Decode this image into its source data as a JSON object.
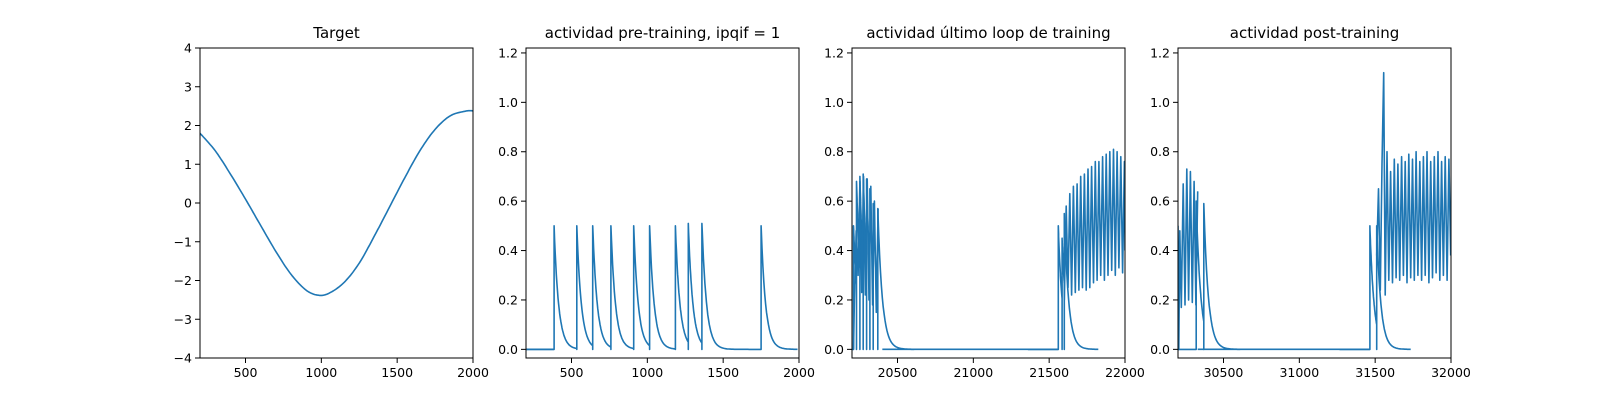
{
  "chart_data": [
    {
      "type": "line",
      "title": "Target",
      "xlim": [
        200,
        2000
      ],
      "ylim": [
        -4,
        4
      ],
      "xticks": [
        500,
        1000,
        1500,
        2000
      ],
      "yticks": [
        -4,
        -3,
        -2,
        -1,
        0,
        1,
        2,
        3,
        4
      ],
      "xticklabels": [
        "500",
        "1000",
        "1500",
        "2000"
      ],
      "yticklabels": [
        "−4",
        "−3",
        "−2",
        "−1",
        "0",
        "1",
        "2",
        "3",
        "4"
      ],
      "color": "#1f77b4",
      "series": [
        {
          "kind": "curve",
          "points": [
            [
              200,
              1.8
            ],
            [
              300,
              1.35
            ],
            [
              400,
              0.75
            ],
            [
              500,
              0.1
            ],
            [
              600,
              -0.58
            ],
            [
              700,
              -1.25
            ],
            [
              800,
              -1.84
            ],
            [
              900,
              -2.25
            ],
            [
              980,
              -2.38
            ],
            [
              1050,
              -2.33
            ],
            [
              1150,
              -2.05
            ],
            [
              1250,
              -1.55
            ],
            [
              1350,
              -0.85
            ],
            [
              1450,
              -0.1
            ],
            [
              1550,
              0.65
            ],
            [
              1650,
              1.35
            ],
            [
              1750,
              1.9
            ],
            [
              1850,
              2.25
            ],
            [
              1950,
              2.37
            ],
            [
              2000,
              2.38
            ]
          ]
        }
      ]
    },
    {
      "type": "line",
      "title": "actividad pre-training, ipqif = 1",
      "xlim": [
        200,
        2000
      ],
      "ylim": [
        -0.035,
        1.22
      ],
      "xticks": [
        500,
        1000,
        1500,
        2000
      ],
      "yticks": [
        0.0,
        0.2,
        0.4,
        0.6,
        0.8,
        1.0,
        1.2
      ],
      "xticklabels": [
        "500",
        "1000",
        "1500",
        "2000"
      ],
      "yticklabels": [
        "0.0",
        "0.2",
        "0.4",
        "0.6",
        "0.8",
        "1.0",
        "1.2"
      ],
      "color": "#1f77b4",
      "series": [
        {
          "kind": "spikes",
          "tau": 30,
          "baseline": 0.0,
          "spikes": [
            [
              385,
              0.5
            ],
            [
              535,
              0.5
            ],
            [
              640,
              0.5
            ],
            [
              760,
              0.5
            ],
            [
              910,
              0.5
            ],
            [
              1015,
              0.5
            ],
            [
              1185,
              0.5
            ],
            [
              1270,
              0.51
            ],
            [
              1360,
              0.51
            ],
            [
              1750,
              0.5
            ]
          ]
        }
      ]
    },
    {
      "type": "line",
      "title": "actividad último loop de training",
      "xlim": [
        20200,
        22000
      ],
      "ylim": [
        -0.035,
        1.22
      ],
      "xticks": [
        20500,
        21000,
        21500,
        22000
      ],
      "yticks": [
        0.0,
        0.2,
        0.4,
        0.6,
        0.8,
        1.0,
        1.2
      ],
      "xticklabels": [
        "20500",
        "21000",
        "21500",
        "22000"
      ],
      "yticklabels": [
        "0.0",
        "0.2",
        "0.4",
        "0.6",
        "0.8",
        "1.0",
        "1.2"
      ],
      "color": "#1f77b4",
      "series": [
        {
          "kind": "spikes",
          "tau": 30,
          "baseline": 0.0,
          "spikes": [
            [
              20210,
              0.5
            ],
            [
              20230,
              0.68
            ],
            [
              20252,
              0.7
            ],
            [
              20274,
              0.71
            ],
            [
              20296,
              0.69
            ],
            [
              20318,
              0.65
            ],
            [
              20340,
              0.59
            ],
            [
              20370,
              0.57
            ]
          ]
        },
        {
          "kind": "oscillation",
          "points": [
            [
              20210,
              0.0
            ],
            [
              20216,
              0.2
            ],
            [
              20228,
              0.48
            ],
            [
              20240,
              0.3
            ],
            [
              20252,
              0.68
            ],
            [
              20264,
              0.23
            ],
            [
              20276,
              0.7
            ],
            [
              20288,
              0.22
            ],
            [
              20300,
              0.69
            ],
            [
              20312,
              0.2
            ],
            [
              20324,
              0.66
            ],
            [
              20336,
              0.18
            ],
            [
              20348,
              0.6
            ],
            [
              20360,
              0.15
            ],
            [
              20372,
              0.57
            ]
          ]
        },
        {
          "kind": "spikes",
          "tau": 28,
          "baseline": 0.0,
          "spikes": [
            [
              21560,
              0.5
            ],
            [
              21585,
              0.45
            ],
            [
              21600,
              0.55
            ]
          ]
        },
        {
          "kind": "oscillation",
          "points": [
            [
              21600,
              0.2
            ],
            [
              21612,
              0.58
            ],
            [
              21624,
              0.25
            ],
            [
              21636,
              0.63
            ],
            [
              21648,
              0.22
            ],
            [
              21660,
              0.66
            ],
            [
              21672,
              0.23
            ],
            [
              21684,
              0.67
            ],
            [
              21696,
              0.24
            ],
            [
              21708,
              0.7
            ],
            [
              21720,
              0.25
            ],
            [
              21732,
              0.71
            ],
            [
              21744,
              0.24
            ],
            [
              21756,
              0.73
            ],
            [
              21768,
              0.25
            ],
            [
              21780,
              0.74
            ],
            [
              21792,
              0.27
            ],
            [
              21804,
              0.76
            ],
            [
              21816,
              0.28
            ],
            [
              21828,
              0.76
            ],
            [
              21840,
              0.3
            ],
            [
              21852,
              0.78
            ],
            [
              21864,
              0.28
            ],
            [
              21876,
              0.79
            ],
            [
              21888,
              0.3
            ],
            [
              21900,
              0.8
            ],
            [
              21912,
              0.32
            ],
            [
              21924,
              0.81
            ],
            [
              21936,
              0.3
            ],
            [
              21948,
              0.8
            ],
            [
              21960,
              0.33
            ],
            [
              21972,
              0.78
            ],
            [
              21984,
              0.31
            ],
            [
              21996,
              0.76
            ],
            [
              22000,
              0.4
            ]
          ]
        }
      ]
    },
    {
      "type": "line",
      "title": "actividad post-training",
      "xlim": [
        30200,
        32000
      ],
      "ylim": [
        -0.035,
        1.22
      ],
      "xticks": [
        30500,
        31000,
        31500,
        32000
      ],
      "yticks": [
        0.0,
        0.2,
        0.4,
        0.6,
        0.8,
        1.0,
        1.2
      ],
      "xticklabels": [
        "30500",
        "31000",
        "31500",
        "32000"
      ],
      "yticklabels": [
        "0.0",
        "0.2",
        "0.4",
        "0.6",
        "0.8",
        "1.0",
        "1.2"
      ],
      "color": "#1f77b4",
      "series": [
        {
          "kind": "spikes",
          "tau": 30,
          "baseline": 0.0,
          "spikes": [
            [
              30320,
              0.6
            ],
            [
              30370,
              0.59
            ]
          ]
        },
        {
          "kind": "oscillation",
          "points": [
            [
              30200,
              0.5
            ],
            [
              30205,
              0.0
            ],
            [
              30212,
              0.48
            ],
            [
              30222,
              0.17
            ],
            [
              30234,
              0.67
            ],
            [
              30246,
              0.18
            ],
            [
              30258,
              0.73
            ],
            [
              30270,
              0.2
            ],
            [
              30282,
              0.72
            ],
            [
              30294,
              0.19
            ],
            [
              30306,
              0.68
            ],
            [
              30318,
              0.18
            ],
            [
              30330,
              0.64
            ]
          ]
        },
        {
          "kind": "spikes",
          "tau": 28,
          "baseline": 0.0,
          "spikes": [
            [
              31465,
              0.5
            ],
            [
              31510,
              0.5
            ]
          ]
        },
        {
          "kind": "oscillation",
          "points": [
            [
              31510,
              0.38
            ],
            [
              31522,
              0.65
            ],
            [
              31534,
              0.24
            ],
            [
              31545,
              0.75
            ],
            [
              31556,
              1.12
            ],
            [
              31566,
              0.22
            ],
            [
              31578,
              0.8
            ],
            [
              31590,
              0.28
            ],
            [
              31602,
              0.72
            ],
            [
              31614,
              0.27
            ],
            [
              31626,
              0.77
            ],
            [
              31638,
              0.29
            ],
            [
              31650,
              0.75
            ],
            [
              31662,
              0.28
            ],
            [
              31674,
              0.78
            ],
            [
              31686,
              0.3
            ],
            [
              31698,
              0.76
            ],
            [
              31710,
              0.27
            ],
            [
              31722,
              0.79
            ],
            [
              31734,
              0.29
            ],
            [
              31746,
              0.77
            ],
            [
              31758,
              0.28
            ],
            [
              31770,
              0.8
            ],
            [
              31782,
              0.3
            ],
            [
              31794,
              0.76
            ],
            [
              31806,
              0.28
            ],
            [
              31818,
              0.78
            ],
            [
              31830,
              0.3
            ],
            [
              31842,
              0.8
            ],
            [
              31854,
              0.27
            ],
            [
              31866,
              0.76
            ],
            [
              31878,
              0.29
            ],
            [
              31890,
              0.78
            ],
            [
              31902,
              0.31
            ],
            [
              31914,
              0.8
            ],
            [
              31926,
              0.28
            ],
            [
              31938,
              0.76
            ],
            [
              31950,
              0.3
            ],
            [
              31962,
              0.78
            ],
            [
              31974,
              0.28
            ],
            [
              31986,
              0.77
            ],
            [
              31998,
              0.38
            ]
          ]
        }
      ]
    }
  ]
}
